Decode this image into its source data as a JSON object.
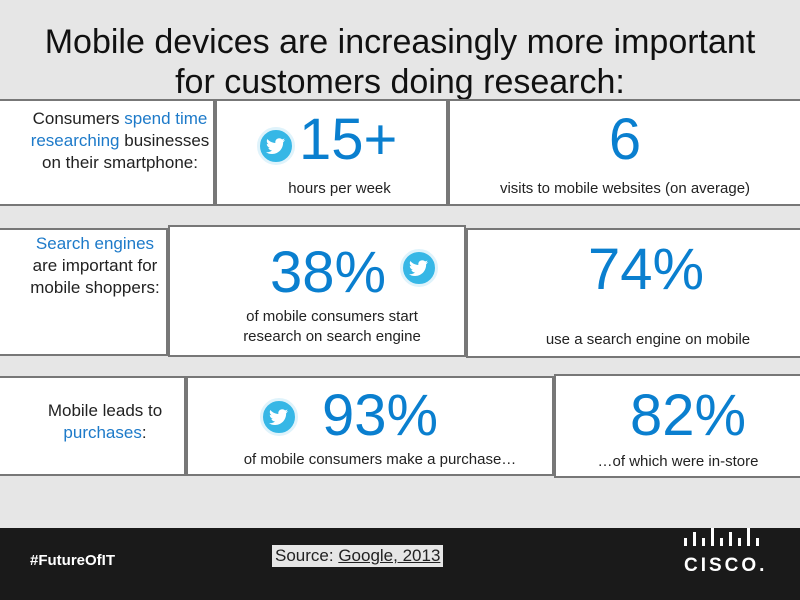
{
  "title": {
    "line1": "Mobile devices are increasingly more important",
    "line2": "for customers doing research:"
  },
  "rows": [
    {
      "label": {
        "p1": "Consumers ",
        "p2": "spend time researching",
        "p3": " businesses on their smartphone:"
      },
      "stats": [
        {
          "value": "15+",
          "caption": "hours per week"
        },
        {
          "value": "6",
          "caption": "visits to mobile websites (on average)"
        }
      ]
    },
    {
      "label": {
        "p1": "Search engines",
        "p2": " are important for mobile shoppers:"
      },
      "stats": [
        {
          "value": "38%",
          "caption_line1": "of mobile consumers start",
          "caption_line2": "research on search engine"
        },
        {
          "value": "74%",
          "caption": "use a search engine on mobile"
        }
      ]
    },
    {
      "label": {
        "p1": "Mobile leads to ",
        "p2": "purchases",
        "p3": ":"
      },
      "stats": [
        {
          "value": "93%",
          "caption": "of mobile consumers make a purchase…"
        },
        {
          "value": "82%",
          "caption": "…of which were in-store"
        }
      ]
    }
  ],
  "footer": {
    "hashtag": "#FutureOfIT",
    "source_prefix": "Source: ",
    "source_link": "Google, 2013",
    "logo_text": "CISCO."
  },
  "icons": {
    "bird": "twitter-bird-icon",
    "logo": "cisco-logo"
  },
  "colors": {
    "stat_blue": "#0a7fcf",
    "label_blue": "#1d7ac9",
    "twitter": "#36b7e6",
    "footer": "#1a1a1a"
  }
}
